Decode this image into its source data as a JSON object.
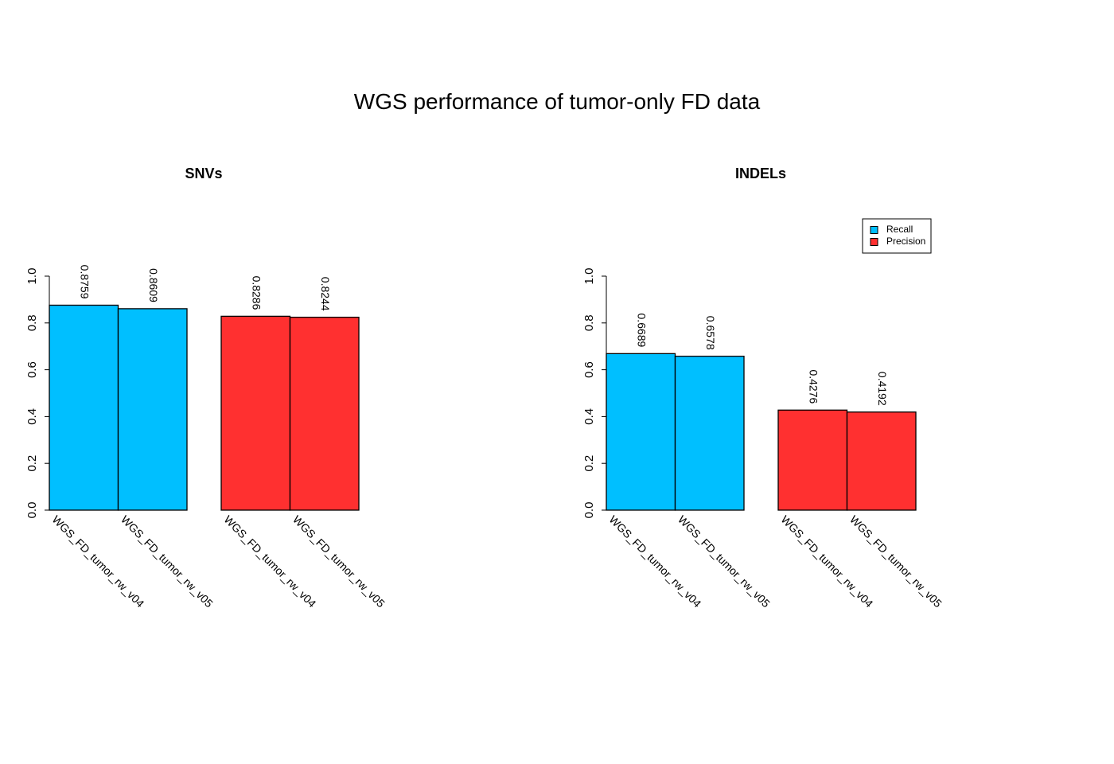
{
  "title": "WGS performance of tumor-only FD data",
  "colors": {
    "recall": "#00BFFF",
    "precision": "#FF3030",
    "axis": "#000000"
  },
  "legend": {
    "position": "top-right of INDELs panel",
    "entries": [
      "Recall",
      "Precision"
    ]
  },
  "chart_data": [
    {
      "type": "bar",
      "title": "SNVs",
      "xlabel": "",
      "ylabel": "",
      "ylim": [
        0,
        1
      ],
      "yticks": [
        "0.0",
        "0.2",
        "0.4",
        "0.6",
        "0.8",
        "1.0"
      ],
      "grid": false,
      "categories": [
        "WGS_FD_tumor_rw_v04",
        "WGS_FD_tumor_rw_v05"
      ],
      "series": [
        {
          "name": "Recall",
          "values": [
            0.8759,
            0.8609
          ],
          "labels": [
            "0.8759",
            "0.8609"
          ]
        },
        {
          "name": "Precision",
          "values": [
            0.8286,
            0.8244
          ],
          "labels": [
            "0.8286",
            "0.8244"
          ]
        }
      ]
    },
    {
      "type": "bar",
      "title": "INDELs",
      "xlabel": "",
      "ylabel": "",
      "ylim": [
        0,
        1
      ],
      "yticks": [
        "0.0",
        "0.2",
        "0.4",
        "0.6",
        "0.8",
        "1.0"
      ],
      "grid": false,
      "categories": [
        "WGS_FD_tumor_rw_v04",
        "WGS_FD_tumor_rw_v05"
      ],
      "series": [
        {
          "name": "Recall",
          "values": [
            0.6689,
            0.6578
          ],
          "labels": [
            "0.6689",
            "0.6578"
          ]
        },
        {
          "name": "Precision",
          "values": [
            0.4276,
            0.4192
          ],
          "labels": [
            "0.4276",
            "0.4192"
          ]
        }
      ]
    }
  ]
}
